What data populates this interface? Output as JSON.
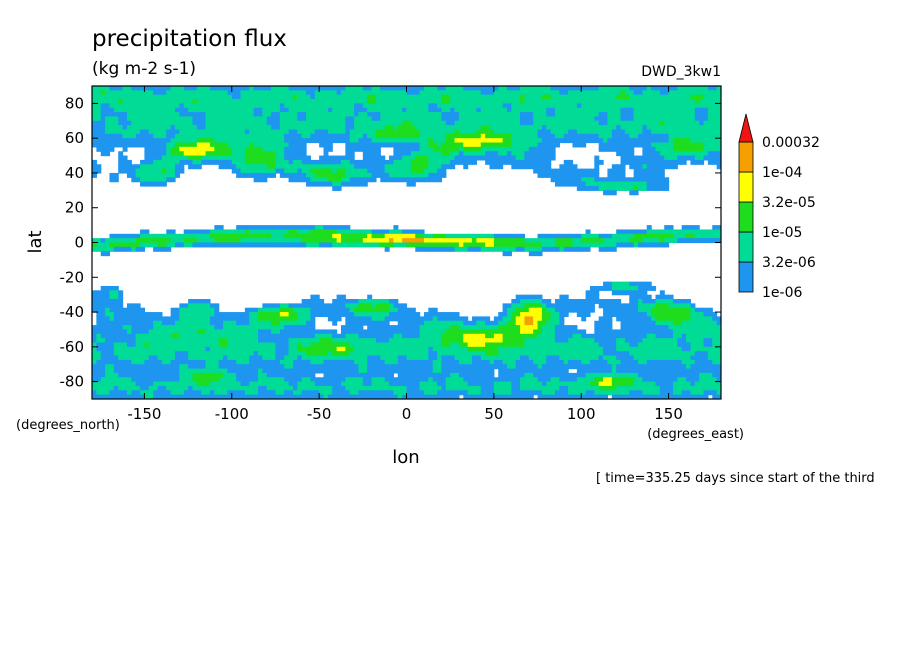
{
  "chart_data": {
    "type": "heatmap",
    "title": "precipitation flux",
    "subtitle": "(kg m-2 s-1)",
    "dataset_label": "DWD_3kw1",
    "xlabel": "lon",
    "ylabel": "lat",
    "x_units": "(degrees_east)",
    "y_units": "(degrees_north)",
    "xlim": [
      -180,
      180
    ],
    "ylim": [
      -90,
      90
    ],
    "x_ticks": [
      -150,
      -100,
      -50,
      0,
      50,
      100,
      150
    ],
    "x_tick_labels": [
      "-150",
      "-100",
      "-50",
      "0",
      "50",
      "100",
      "150"
    ],
    "y_ticks": [
      -80,
      -60,
      -40,
      -20,
      0,
      20,
      40,
      60,
      80
    ],
    "y_tick_labels": [
      "-80",
      "-60",
      "-40",
      "-20",
      "0",
      "20",
      "40",
      "60",
      "80"
    ],
    "levels": [
      {
        "label": "1e-06",
        "color": "#1e96f0"
      },
      {
        "label": "3.2e-06",
        "color": "#00dc96"
      },
      {
        "label": "1e-05",
        "color": "#1edc1e"
      },
      {
        "label": "3.2e-05",
        "color": "#ffff00"
      },
      {
        "label": "1e-04",
        "color": "#f5a000"
      },
      {
        "label": "0.00032",
        "color": "#f01414"
      }
    ],
    "legend_position": "right",
    "time_note": "[ time=335.25 days since start of the third"
  }
}
